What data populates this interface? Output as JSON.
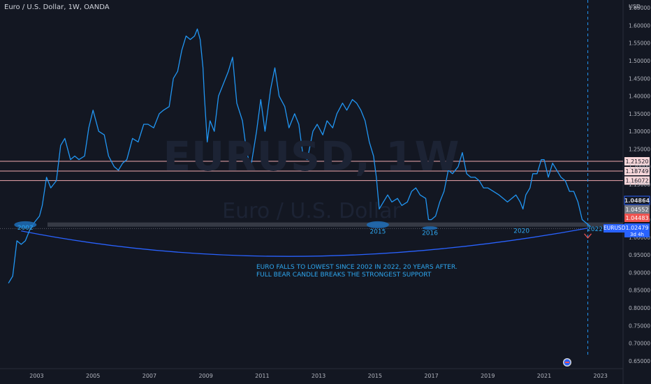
{
  "header": {
    "title": "Euro / U.S. Dollar, 1W, OANDA"
  },
  "axis": {
    "currency": "USD"
  },
  "watermark": {
    "symbol": "EURUSD, 1W",
    "name": "Euro / U.S. Dollar"
  },
  "annotation": {
    "line1": "EURO FALLS TO LOWEST SINCE 2002 IN 2022, 20 YEARS AFTER.",
    "line2": "FULL BEAR CANDLE BREAKS THE STRONGEST SUPPORT"
  },
  "symbol_tag": "EURUSD",
  "colors": {
    "background": "#131722",
    "price_line": "#2196f3",
    "resistance": "#f0a8ae",
    "support_band": "#363a45",
    "arc": "#2962ff",
    "label_text": "#2ea7f0"
  },
  "chart_data": {
    "type": "line",
    "title": "Euro / U.S. Dollar, 1W, OANDA",
    "ylabel": "USD",
    "ylim": [
      0.628,
      1.672
    ],
    "xlim": [
      2001.7,
      2023.8
    ],
    "x_ticks": [
      "2003",
      "2005",
      "2007",
      "2009",
      "2011",
      "2013",
      "2015",
      "2017",
      "2019",
      "2021",
      "2023"
    ],
    "y_ticks": [
      "1.65000",
      "1.60000",
      "1.55000",
      "1.50000",
      "1.45000",
      "1.40000",
      "1.35000",
      "1.30000",
      "1.25000",
      "1.20000",
      "1.15000",
      "1.10000",
      "1.05000",
      "1.00000",
      "0.95000",
      "0.90000",
      "0.85000",
      "0.80000",
      "0.75000",
      "0.70000",
      "0.65000"
    ],
    "series": [
      {
        "x": [
          2002.0,
          2002.15,
          2002.3,
          2002.45,
          2002.6,
          2002.75,
          2002.9,
          2003.1,
          2003.2,
          2003.35,
          2003.5,
          2003.7,
          2003.85,
          2004.0,
          2004.2,
          2004.35,
          2004.5,
          2004.7,
          2004.85,
          2005.0,
          2005.2,
          2005.4,
          2005.55,
          2005.75,
          2005.9,
          2006.05,
          2006.2,
          2006.4,
          2006.6,
          2006.8,
          2006.95,
          2007.15,
          2007.35,
          2007.5,
          2007.7,
          2007.85,
          2008.0,
          2008.15,
          2008.3,
          2008.45,
          2008.6,
          2008.7,
          2008.8,
          2008.9,
          2008.95,
          2009.05,
          2009.15,
          2009.3,
          2009.45,
          2009.6,
          2009.8,
          2009.95,
          2010.1,
          2010.3,
          2010.45,
          2010.6,
          2010.8,
          2010.95,
          2011.1,
          2011.3,
          2011.45,
          2011.6,
          2011.8,
          2011.95,
          2012.15,
          2012.3,
          2012.45,
          2012.6,
          2012.8,
          2012.95,
          2013.15,
          2013.3,
          2013.5,
          2013.65,
          2013.85,
          2014.0,
          2014.2,
          2014.35,
          2014.5,
          2014.65,
          2014.8,
          2014.95,
          2015.05,
          2015.15,
          2015.3,
          2015.45,
          2015.6,
          2015.8,
          2015.95,
          2016.15,
          2016.3,
          2016.45,
          2016.6,
          2016.8,
          2016.9,
          2017.0,
          2017.15,
          2017.3,
          2017.45,
          2017.6,
          2017.75,
          2017.95,
          2018.1,
          2018.25,
          2018.4,
          2018.55,
          2018.7,
          2018.85,
          2019.0,
          2019.2,
          2019.4,
          2019.55,
          2019.7,
          2019.85,
          2020.0,
          2020.15,
          2020.25,
          2020.35,
          2020.5,
          2020.6,
          2020.75,
          2020.9,
          2021.0,
          2021.15,
          2021.3,
          2021.45,
          2021.6,
          2021.75,
          2021.9,
          2022.05,
          2022.2,
          2022.35,
          2022.5,
          2022.65
        ],
        "y": [
          0.87,
          0.89,
          0.99,
          0.98,
          0.99,
          1.02,
          1.04,
          1.06,
          1.09,
          1.17,
          1.14,
          1.16,
          1.26,
          1.28,
          1.22,
          1.23,
          1.22,
          1.23,
          1.31,
          1.36,
          1.3,
          1.29,
          1.23,
          1.2,
          1.19,
          1.21,
          1.22,
          1.28,
          1.27,
          1.32,
          1.32,
          1.31,
          1.35,
          1.36,
          1.37,
          1.45,
          1.47,
          1.53,
          1.57,
          1.56,
          1.57,
          1.59,
          1.56,
          1.48,
          1.4,
          1.27,
          1.33,
          1.3,
          1.4,
          1.43,
          1.47,
          1.51,
          1.38,
          1.33,
          1.24,
          1.2,
          1.3,
          1.39,
          1.3,
          1.42,
          1.48,
          1.4,
          1.37,
          1.31,
          1.35,
          1.32,
          1.23,
          1.22,
          1.3,
          1.32,
          1.29,
          1.33,
          1.31,
          1.35,
          1.38,
          1.36,
          1.39,
          1.38,
          1.36,
          1.33,
          1.27,
          1.23,
          1.17,
          1.08,
          1.1,
          1.12,
          1.1,
          1.11,
          1.09,
          1.1,
          1.13,
          1.14,
          1.12,
          1.11,
          1.05,
          1.05,
          1.06,
          1.1,
          1.13,
          1.19,
          1.18,
          1.2,
          1.24,
          1.18,
          1.17,
          1.17,
          1.16,
          1.14,
          1.14,
          1.13,
          1.12,
          1.11,
          1.1,
          1.11,
          1.12,
          1.1,
          1.08,
          1.12,
          1.14,
          1.18,
          1.18,
          1.22,
          1.22,
          1.17,
          1.21,
          1.19,
          1.17,
          1.16,
          1.13,
          1.13,
          1.1,
          1.05,
          1.04,
          1.03
        ]
      }
    ],
    "levels": [
      {
        "name": "resistance-1",
        "value": 1.2152,
        "label": "1.21520"
      },
      {
        "name": "resistance-2",
        "value": 1.18749,
        "label": "1.18749"
      },
      {
        "name": "resistance-3",
        "value": 1.16072,
        "label": "1.16072"
      }
    ],
    "price_labels": [
      {
        "name": "price-label-high",
        "value": 1.04864,
        "label": "1.04864",
        "bg": "#131722",
        "fg": "#d1d4dc"
      },
      {
        "name": "price-label-gray",
        "value": 1.04552,
        "label": "1.04552",
        "bg": "#787b86",
        "fg": "#ffffff"
      },
      {
        "name": "price-label-red",
        "value": 1.04483,
        "label": "1.04483",
        "bg": "#ef5350",
        "fg": "#ffffff"
      },
      {
        "name": "price-label-last",
        "value": 1.02479,
        "label": "1.02479",
        "sub": "3d 4h",
        "bg": "#2962ff",
        "fg": "#ffffff"
      }
    ],
    "support_band": [
      1.03,
      1.042
    ],
    "markers": [
      {
        "label": "2002",
        "x": 2002.6,
        "y": 1.0355,
        "text_y": 1.021
      },
      {
        "label": "2015",
        "x": 2015.1,
        "y": 1.0355,
        "text_y": 1.011
      },
      {
        "label": "2016",
        "x": 2016.95,
        "y": 1.026,
        "text_y": 1.007
      },
      {
        "label": "2020",
        "x": 2020.2,
        "y": null,
        "text_y": 1.013
      },
      {
        "label": "2022",
        "x": 2022.8,
        "y": null,
        "text_y": 1.018
      }
    ],
    "arc": {
      "x": [
        2002.45,
        2012.2,
        2022.55
      ],
      "y": [
        1.018,
        0.946,
        1.026
      ]
    },
    "vline_x": 2022.55,
    "grid": false,
    "legend": "none"
  }
}
